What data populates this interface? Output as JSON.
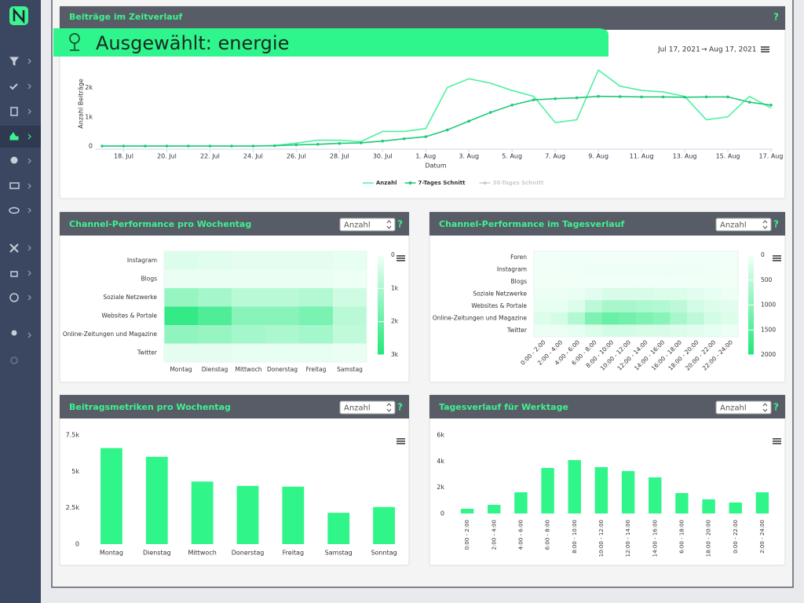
{
  "header": {
    "selected": "Ausgewählt: energie",
    "date_from": "Jul 17, 2021",
    "arrow": "→",
    "date_to": "Aug 17, 2021"
  },
  "help": "?",
  "chart_data": [
    {
      "type": "line",
      "title": "Beiträge im Zeitverlauf",
      "ylabel": "Anzahl Beiträge",
      "xlabel": "Datum",
      "categories": [
        null,
        "18. Jul",
        null,
        "20. Jul",
        null,
        "22. Jul",
        null,
        "24. Jul",
        null,
        "26. Jul",
        null,
        "28. Jul",
        null,
        "30. Jul",
        null,
        "1. Aug",
        null,
        "3. Aug",
        null,
        "5. Aug",
        null,
        "7. Aug",
        null,
        "9. Aug",
        null,
        "11. Aug",
        null,
        "13. Aug",
        null,
        "15. Aug",
        null,
        "17. Aug"
      ],
      "ylim": [
        0,
        2900
      ],
      "yticks": [
        0,
        {
          "value": 1000,
          "label": "1k"
        },
        {
          "value": 2000,
          "label": "2k"
        }
      ],
      "grid": false,
      "series": [
        {
          "name": "Anzahl",
          "color": "#4ff0a0",
          "markers": false,
          "values": [
            0,
            0,
            0,
            0,
            0,
            0,
            0,
            0,
            20,
            100,
            200,
            200,
            150,
            500,
            500,
            600,
            2000,
            2300,
            2150,
            1900,
            1700,
            800,
            900,
            2600,
            2050,
            1900,
            1850,
            1700,
            900,
            1000,
            1700,
            1300
          ]
        },
        {
          "name": "7-Tages Schnitt",
          "color": "#1fc97a",
          "markers": true,
          "values": [
            0,
            0,
            0,
            0,
            0,
            0,
            0,
            0,
            10,
            40,
            60,
            90,
            110,
            170,
            250,
            320,
            550,
            850,
            1150,
            1400,
            1580,
            1620,
            1650,
            1700,
            1690,
            1680,
            1680,
            1670,
            1680,
            1680,
            1500,
            1400
          ]
        },
        {
          "name": "30-Tages Schnitt",
          "color": "#cccccc",
          "markers": true,
          "visible": false
        }
      ]
    },
    {
      "type": "heatmap",
      "title": "Channel-Performance pro Wochentag",
      "dropdown": "Anzahl",
      "categories": [
        "Montag",
        "Dienstag",
        "Mittwoch",
        "Donerstag",
        "Freitag",
        "Samstag"
      ],
      "rows": [
        "Instagram",
        "Blogs",
        "Soziale Netzwerke",
        "Websites & Portale",
        "Online-Zeitungen und Magazine",
        "Twitter"
      ],
      "values": [
        [
          300,
          250,
          200,
          200,
          200,
          150
        ],
        [
          100,
          100,
          100,
          100,
          100,
          50
        ],
        [
          1300,
          1100,
          800,
          800,
          900,
          500
        ],
        [
          2700,
          2300,
          1500,
          1500,
          1700,
          800
        ],
        [
          1400,
          1300,
          1100,
          1000,
          1100,
          700
        ],
        [
          200,
          200,
          150,
          150,
          150,
          100
        ]
      ],
      "zlim": [
        0,
        3000
      ],
      "zticks": [
        0,
        {
          "value": 1000,
          "label": "1k"
        },
        {
          "value": 2000,
          "label": "2k"
        },
        {
          "value": 3000,
          "label": "3k"
        }
      ],
      "colorscale": [
        "#f2fff8",
        "#1ee87a"
      ]
    },
    {
      "type": "heatmap",
      "title": "Channel-Performance im Tagesverlauf",
      "dropdown": "Anzahl",
      "categories": [
        "0:00 - 2:00",
        "2:00 - 4:00",
        "4:00 - 6:00",
        "6:00 - 8:00",
        "8:00 - 10:00",
        "10:00 - 12:00",
        "12:00 - 14:00",
        "14:00 - 16:00",
        "16:00 - 18:00",
        "18:00 - 20:00",
        "20:00 - 22:00",
        "22:00 - 24:00"
      ],
      "rows": [
        "Foren",
        "Instagram",
        "Blogs",
        "Soziale Netzwerke",
        "Websites & Portale",
        "Online-Zeitungen und Magazine",
        "Twitter"
      ],
      "values": [
        [
          0,
          0,
          0,
          0,
          0,
          0,
          0,
          0,
          0,
          0,
          0,
          0
        ],
        [
          10,
          10,
          20,
          30,
          40,
          40,
          40,
          40,
          30,
          30,
          20,
          10
        ],
        [
          10,
          10,
          10,
          20,
          20,
          20,
          20,
          20,
          20,
          10,
          10,
          10
        ],
        [
          50,
          50,
          80,
          150,
          250,
          250,
          250,
          200,
          200,
          150,
          100,
          50
        ],
        [
          100,
          100,
          200,
          500,
          700,
          700,
          650,
          600,
          500,
          300,
          200,
          150
        ],
        [
          200,
          300,
          600,
          1100,
          1300,
          1200,
          1100,
          1000,
          700,
          500,
          300,
          200
        ],
        [
          50,
          50,
          100,
          200,
          300,
          300,
          250,
          250,
          200,
          150,
          100,
          50
        ]
      ],
      "zlim": [
        0,
        2000
      ],
      "zticks": [
        0,
        500,
        1000,
        1500,
        2000
      ],
      "colorscale": [
        "#f2fff8",
        "#1ee87a"
      ]
    },
    {
      "type": "bar",
      "title": "Beitragsmetriken pro Wochentag",
      "dropdown": "Anzahl",
      "color": "#30f589",
      "categories": [
        "Montag",
        "Dienstag",
        "Mittwoch",
        "Donerstag",
        "Freitag",
        "Samstag",
        "Sonntag"
      ],
      "values": [
        6600,
        6000,
        4300,
        4000,
        3950,
        2150,
        2550
      ],
      "ylim": [
        0,
        7500
      ],
      "yticks": [
        0,
        {
          "value": 2500,
          "label": "2.5k"
        },
        {
          "value": 5000,
          "label": "5k"
        },
        {
          "value": 7500,
          "label": "7.5k"
        }
      ],
      "grid": false
    },
    {
      "type": "bar",
      "title": "Tagesverlauf für Werktage",
      "dropdown": "Anzahl",
      "color": "#30f589",
      "categories": [
        "0:00 - 2:00",
        "2:00 - 4:00",
        "4:00 - 6:00",
        "6:00 - 8:00",
        "8:00 - 10:00",
        "10:00 - 12:00",
        "12:00 - 14:00",
        "14:00 - 16:00",
        "6:00 - 18:00",
        "18:00 - 20:00",
        "0:00 - 22:00",
        "2:00 - 24:00"
      ],
      "values": [
        360,
        660,
        1620,
        3480,
        4080,
        3540,
        3240,
        2760,
        1560,
        1080,
        840,
        1620
      ],
      "ylim": [
        0,
        6000
      ],
      "yticks": [
        0,
        {
          "value": 2000,
          "label": "2k"
        },
        {
          "value": 4000,
          "label": "4k"
        },
        {
          "value": 6000,
          "label": "6k"
        }
      ],
      "grid": false
    }
  ]
}
